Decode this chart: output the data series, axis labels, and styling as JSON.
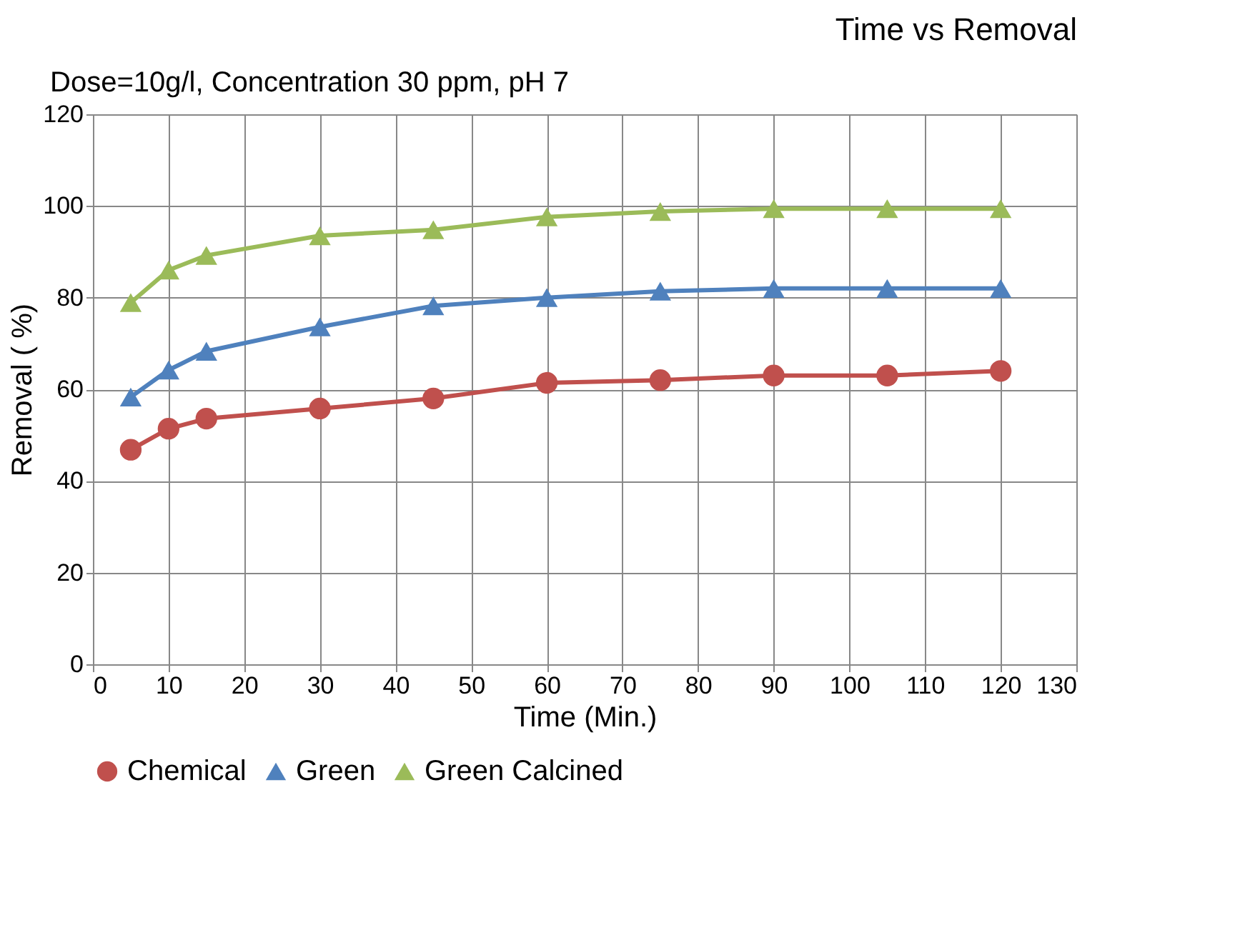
{
  "chart_data": {
    "type": "line",
    "title": "Time vs Removal",
    "annotations": [
      "Dose=10g/l, Concentration 30 ppm, pH 7"
    ],
    "xlabel": "Time (Min.)",
    "ylabel": "Removal ( %)",
    "xlim": [
      0,
      130
    ],
    "xticks": [
      0,
      10,
      20,
      30,
      40,
      50,
      60,
      70,
      80,
      90,
      100,
      110,
      120,
      130
    ],
    "ylim": [
      0,
      120
    ],
    "yticks": [
      0,
      20,
      40,
      60,
      80,
      100,
      120
    ],
    "x": [
      5,
      10,
      15,
      30,
      45,
      60,
      75,
      90,
      105,
      120
    ],
    "series": [
      {
        "name": "Chemical",
        "color": "#c0504d",
        "marker": "circle",
        "values": [
          46.8,
          51.4,
          53.6,
          55.8,
          58,
          61.4,
          62,
          63,
          63,
          64
        ]
      },
      {
        "name": "Green",
        "color": "#4f81bd",
        "marker": "triangle",
        "values": [
          58.3,
          64.2,
          68.3,
          73.6,
          78.2,
          80,
          81.4,
          82,
          82,
          82
        ]
      },
      {
        "name": "Green Calcined",
        "color": "#9bbb59",
        "marker": "triangle",
        "values": [
          78.9,
          86,
          89.2,
          93.5,
          94.8,
          97.6,
          98.8,
          99.4,
          99.4,
          99.4
        ]
      }
    ],
    "grid": true,
    "legend": "bottom",
    "line_style": "solid"
  }
}
